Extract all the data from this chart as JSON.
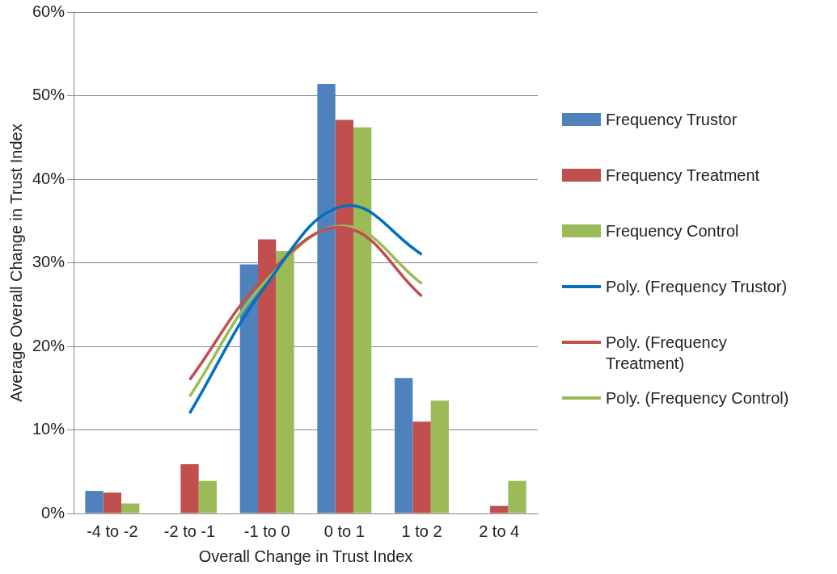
{
  "chart_data": {
    "type": "bar",
    "xlabel": "Overall Change in Trust Index",
    "ylabel": "Average Overall Change in Trust Index",
    "categories": [
      "-4 to -2",
      "-2 to -1",
      "-1 to 0",
      "0 to 1",
      "1 to 2",
      "2 to 4"
    ],
    "ylim": [
      0,
      60
    ],
    "yticks": [
      {
        "value": 0,
        "label": "0%"
      },
      {
        "value": 10,
        "label": "10%"
      },
      {
        "value": 20,
        "label": "20%"
      },
      {
        "value": 30,
        "label": "30%"
      },
      {
        "value": 40,
        "label": "40%"
      },
      {
        "value": 50,
        "label": "50%"
      },
      {
        "value": 60,
        "label": "60%"
      }
    ],
    "grid": "y",
    "legend": "right",
    "series": [
      {
        "name": "Frequency Trustor",
        "color": "#4f81bd",
        "values": [
          2.7,
          0,
          29.8,
          51.4,
          16.2,
          0
        ]
      },
      {
        "name": "Frequency Treatment",
        "color": "#c0504d",
        "values": [
          2.5,
          5.9,
          32.8,
          47.1,
          11.0,
          0.9
        ]
      },
      {
        "name": "Frequency Control",
        "color": "#9bbb59",
        "values": [
          1.2,
          3.9,
          31.4,
          46.2,
          13.5,
          3.9
        ]
      },
      {
        "name": "Poly. (Frequency Trustor)",
        "type": "line",
        "color": "#0070c0",
        "values": [
          null,
          12,
          27.5,
          36.8,
          31,
          null
        ]
      },
      {
        "name": "Poly. (Frequency Treatment)",
        "type": "line",
        "color": "#c0504d",
        "values": [
          null,
          16,
          28.5,
          34.2,
          26,
          null
        ]
      },
      {
        "name": "Poly. (Frequency Control)",
        "type": "line",
        "color": "#9bbb59",
        "values": [
          null,
          14,
          28,
          34.4,
          27.5,
          null
        ]
      }
    ]
  }
}
